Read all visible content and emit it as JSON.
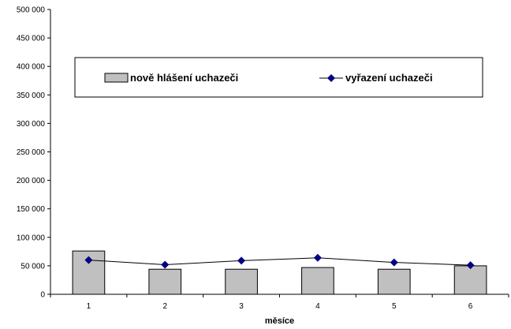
{
  "chart_data": {
    "type": "bar",
    "title": "",
    "xlabel": "měsíce",
    "ylabel": "",
    "categories": [
      "1",
      "2",
      "3",
      "4",
      "5",
      "6"
    ],
    "ylim": [
      0,
      500000
    ],
    "y_ticks": [
      0,
      50000,
      100000,
      150000,
      200000,
      250000,
      300000,
      350000,
      400000,
      450000,
      500000
    ],
    "y_tick_labels": [
      "0",
      "50 000",
      "100 000",
      "150 000",
      "200 000",
      "250 000",
      "300 000",
      "350 000",
      "400 000",
      "450 000",
      "500 000"
    ],
    "grid": false,
    "legend_position": "upper-center",
    "series": [
      {
        "name": "nově hlášení uchazeči",
        "type": "bar",
        "color": "#c0c0c0",
        "values": [
          76000,
          44000,
          44000,
          47000,
          44000,
          50000
        ]
      },
      {
        "name": "vyřazení uchazeči",
        "type": "line",
        "color": "#000080",
        "values": [
          60000,
          52000,
          59000,
          64000,
          56000,
          51000
        ]
      }
    ]
  }
}
